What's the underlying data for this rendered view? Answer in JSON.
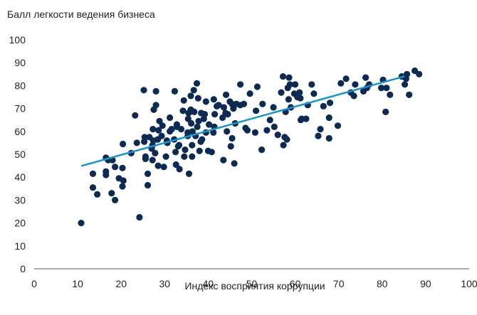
{
  "chart_data": {
    "type": "scatter",
    "title": "",
    "ylabel": "Балл легкости ведения бизнеса",
    "xlabel": "Индекс восприятия коррупции",
    "xlim": [
      0,
      100
    ],
    "ylim": [
      0,
      100
    ],
    "xticks": [
      0,
      10,
      20,
      30,
      40,
      50,
      60,
      70,
      80,
      90,
      100
    ],
    "yticks": [
      0,
      10,
      20,
      30,
      40,
      50,
      60,
      70,
      80,
      90,
      100
    ],
    "grid": false,
    "legend": "none",
    "colors": {
      "points": "#0d2b52",
      "trend": "#1b95c8",
      "axis": "#555555",
      "text": "#231f20"
    },
    "trendline": {
      "x": [
        11,
        85
      ],
      "y": [
        45,
        84
      ]
    },
    "points": [
      [
        10.8,
        20
      ],
      [
        13.5,
        41.5
      ],
      [
        13.5,
        35.5
      ],
      [
        14.5,
        32.5
      ],
      [
        16.5,
        48.5
      ],
      [
        16.5,
        42.5
      ],
      [
        16.5,
        41
      ],
      [
        17,
        47.5
      ],
      [
        17.8,
        33
      ],
      [
        18,
        47.5
      ],
      [
        18.6,
        44.5
      ],
      [
        18.6,
        30
      ],
      [
        19.5,
        39.5
      ],
      [
        20.3,
        44
      ],
      [
        20.5,
        38.5
      ],
      [
        20.3,
        36
      ],
      [
        20.4,
        54.5
      ],
      [
        22.3,
        50.5
      ],
      [
        23.2,
        67
      ],
      [
        23.6,
        55
      ],
      [
        24.2,
        22.5
      ],
      [
        25.2,
        78
      ],
      [
        25.3,
        55.5
      ],
      [
        25.4,
        57.5
      ],
      [
        25.6,
        48
      ],
      [
        25.6,
        49
      ],
      [
        26.1,
        41.5
      ],
      [
        26.1,
        36.5
      ],
      [
        26.5,
        57.5
      ],
      [
        27,
        52.5
      ],
      [
        27.2,
        54
      ],
      [
        27.3,
        61
      ],
      [
        27.2,
        47.5
      ],
      [
        27.4,
        56
      ],
      [
        27.5,
        69.5
      ],
      [
        27.8,
        50.5
      ],
      [
        28,
        71.5
      ],
      [
        28,
        77.5
      ],
      [
        28.4,
        56.5
      ],
      [
        28.5,
        45
      ],
      [
        28.6,
        60.5
      ],
      [
        28.8,
        64.5
      ],
      [
        29.3,
        58
      ],
      [
        29.5,
        62.5
      ],
      [
        29.8,
        44.5
      ],
      [
        30.3,
        49
      ],
      [
        30.5,
        56
      ],
      [
        30.6,
        55
      ],
      [
        31.2,
        60
      ],
      [
        31.2,
        66
      ],
      [
        31.6,
        61
      ],
      [
        32.2,
        56.5
      ],
      [
        32.3,
        77.5
      ],
      [
        32.5,
        51
      ],
      [
        32.6,
        45.5
      ],
      [
        32.8,
        63
      ],
      [
        32.8,
        62
      ],
      [
        33.1,
        53.5
      ],
      [
        33.3,
        54
      ],
      [
        33.4,
        43.5
      ],
      [
        33.8,
        61
      ],
      [
        34.2,
        69
      ],
      [
        34.4,
        73.5
      ],
      [
        34.5,
        49
      ],
      [
        34.7,
        52
      ],
      [
        35.3,
        59.5
      ],
      [
        35.3,
        58
      ],
      [
        35.4,
        65.5
      ],
      [
        35.5,
        68
      ],
      [
        35.6,
        41.5
      ],
      [
        36,
        69.5
      ],
      [
        36,
        75.5
      ],
      [
        36.1,
        63.5
      ],
      [
        36.3,
        54
      ],
      [
        36.3,
        49
      ],
      [
        36.4,
        60
      ],
      [
        36.7,
        78
      ],
      [
        36.8,
        68.5
      ],
      [
        37.1,
        58
      ],
      [
        37.4,
        81
      ],
      [
        37.5,
        62
      ],
      [
        37.7,
        74.5
      ],
      [
        37.8,
        64.5
      ],
      [
        38,
        51.5
      ],
      [
        38.3,
        55.5
      ],
      [
        38.4,
        68
      ],
      [
        38.6,
        56.5
      ],
      [
        39,
        65.5
      ],
      [
        39.2,
        67.5
      ],
      [
        39.5,
        59.5
      ],
      [
        39.5,
        73
      ],
      [
        40,
        51.5
      ],
      [
        40.2,
        63
      ],
      [
        40.8,
        51
      ],
      [
        41.2,
        59.5
      ],
      [
        41.3,
        74
      ],
      [
        41.4,
        62
      ],
      [
        41.5,
        67.5
      ],
      [
        42,
        71
      ],
      [
        42.4,
        71.5
      ],
      [
        43.3,
        66
      ],
      [
        43.5,
        47.5
      ],
      [
        43.6,
        70.5
      ],
      [
        44,
        68
      ],
      [
        44.1,
        76
      ],
      [
        44.3,
        60
      ],
      [
        44.5,
        67.5
      ],
      [
        45,
        73
      ],
      [
        45.2,
        53.5
      ],
      [
        45.5,
        57
      ],
      [
        45.5,
        72
      ],
      [
        45.8,
        70
      ],
      [
        46,
        46
      ],
      [
        46.2,
        63.5
      ],
      [
        46.5,
        72
      ],
      [
        47.4,
        80.5
      ],
      [
        47.4,
        71.5
      ],
      [
        48.2,
        72
      ],
      [
        48.6,
        61.5
      ],
      [
        49,
        60.5
      ],
      [
        49.6,
        76.5
      ],
      [
        50.8,
        59.5
      ],
      [
        51,
        69
      ],
      [
        51.3,
        79.5
      ],
      [
        52.3,
        52
      ],
      [
        52.5,
        72
      ],
      [
        53.5,
        60.5
      ],
      [
        54.2,
        65
      ],
      [
        55,
        70.5
      ],
      [
        55.2,
        62
      ],
      [
        56,
        58.5
      ],
      [
        56.8,
        77
      ],
      [
        57.2,
        84
      ],
      [
        57.3,
        54
      ],
      [
        57.6,
        57.5
      ],
      [
        57.8,
        68.5
      ],
      [
        58.1,
        56.5
      ],
      [
        58.3,
        79
      ],
      [
        58.5,
        74
      ],
      [
        58.6,
        83.5
      ],
      [
        58.8,
        80.5
      ],
      [
        59,
        70.5
      ],
      [
        59.8,
        76.5
      ],
      [
        60,
        80.5
      ],
      [
        60.5,
        75
      ],
      [
        61,
        77
      ],
      [
        61.2,
        74.5
      ],
      [
        61.5,
        65.5
      ],
      [
        61.3,
        65
      ],
      [
        62.5,
        65.5
      ],
      [
        62.9,
        71.5
      ],
      [
        63.8,
        80.5
      ],
      [
        64.3,
        76.5
      ],
      [
        65.3,
        58
      ],
      [
        65.8,
        61
      ],
      [
        66.5,
        71
      ],
      [
        67.8,
        66
      ],
      [
        67.8,
        57
      ],
      [
        68,
        72.5
      ],
      [
        69.8,
        62.5
      ],
      [
        70.5,
        81
      ],
      [
        71.7,
        83
      ],
      [
        72.8,
        77
      ],
      [
        73.5,
        75.5
      ],
      [
        73.8,
        80.5
      ],
      [
        75.7,
        77.5
      ],
      [
        76.2,
        83.5
      ],
      [
        76.5,
        79
      ],
      [
        77,
        80.5
      ],
      [
        79.8,
        79
      ],
      [
        80.2,
        82.5
      ],
      [
        80.8,
        68.5
      ],
      [
        81,
        79
      ],
      [
        81.8,
        76
      ],
      [
        84.5,
        84
      ],
      [
        85.2,
        80.5
      ],
      [
        85.5,
        83
      ],
      [
        85.7,
        85
      ],
      [
        86.2,
        76
      ],
      [
        87.5,
        86.5
      ],
      [
        88.5,
        85
      ]
    ]
  }
}
